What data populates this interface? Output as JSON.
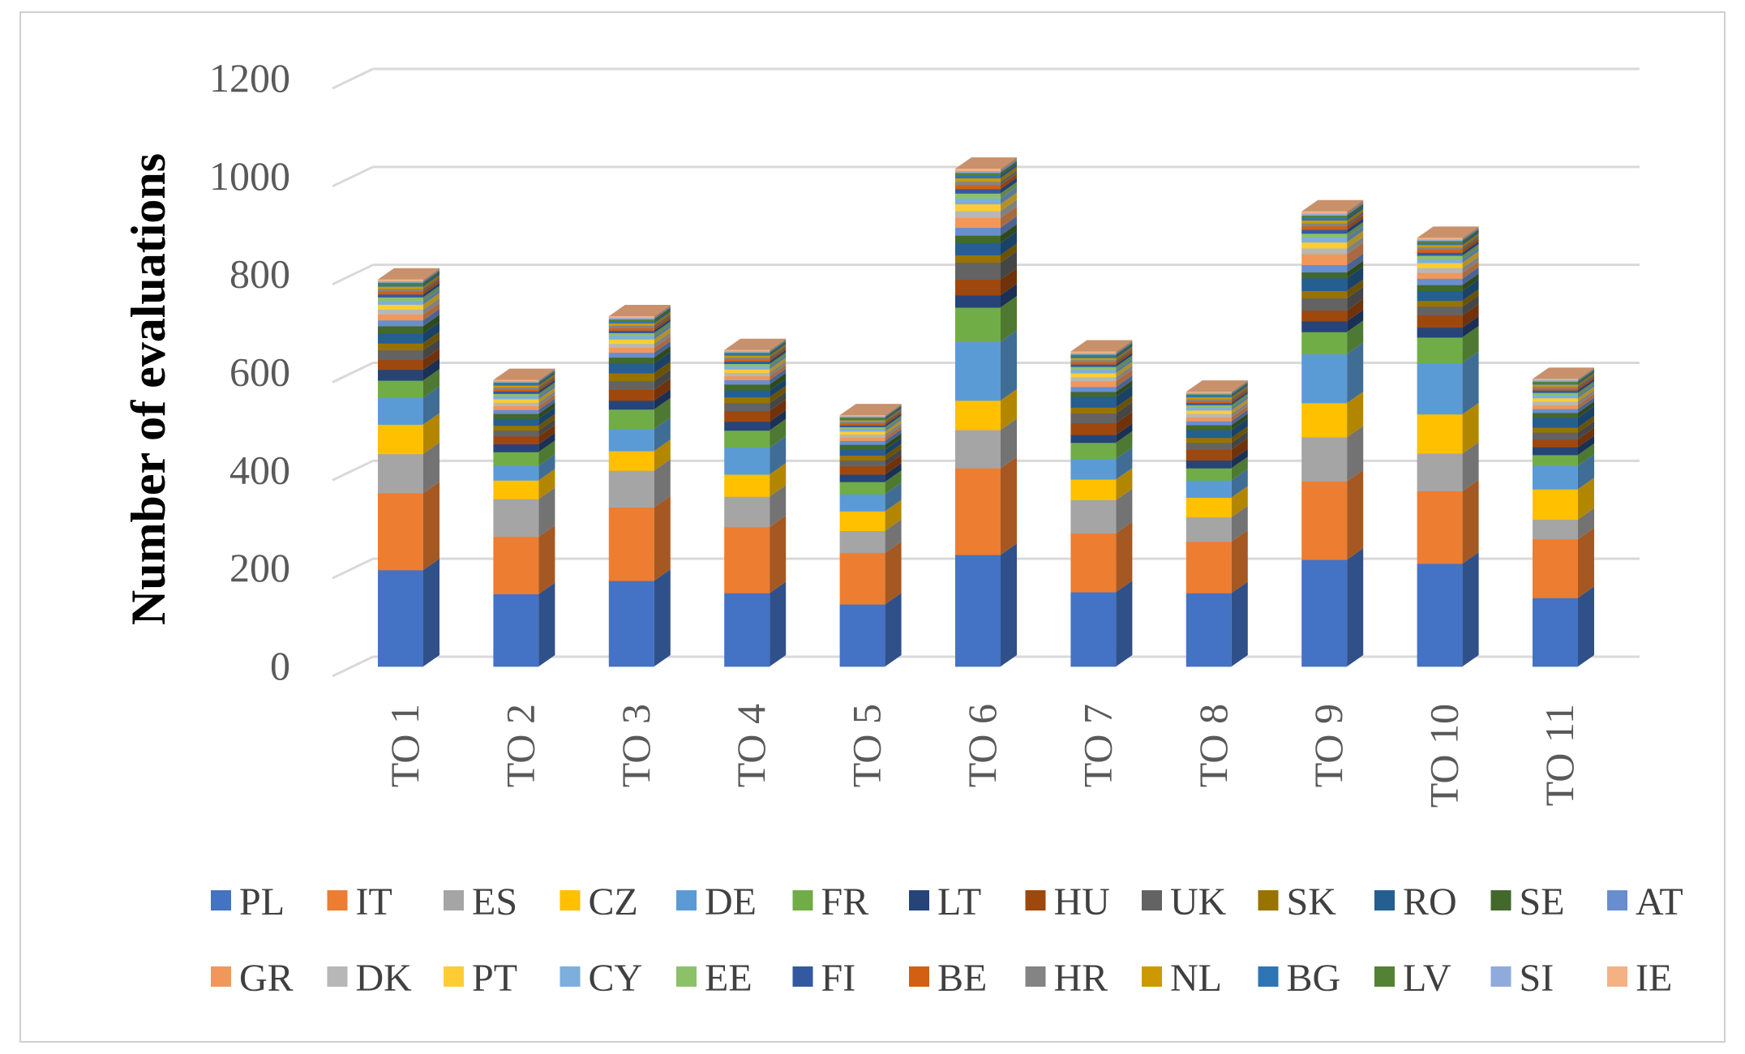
{
  "chart_data": {
    "type": "bar",
    "subtype": "stacked-3d",
    "title": "",
    "xlabel": "",
    "ylabel": "Number of evaluations",
    "ylim": [
      0,
      1200
    ],
    "yticks": [
      0,
      200,
      400,
      600,
      800,
      1000,
      1200
    ],
    "grid": true,
    "legend_position": "bottom",
    "categories": [
      "TO 1",
      "TO 2",
      "TO 3",
      "TO 4",
      "TO 5",
      "TO 6",
      "TO 7",
      "TO 8",
      "TO 9",
      "TO 10",
      "TO 11"
    ],
    "series": [
      {
        "name": "PL",
        "color": "#4472C4",
        "values": [
          197,
          148,
          175,
          150,
          127,
          228,
          152,
          150,
          218,
          210,
          140
        ]
      },
      {
        "name": "IT",
        "color": "#ED7D31",
        "values": [
          157,
          117,
          150,
          135,
          105,
          177,
          120,
          105,
          160,
          148,
          120
        ]
      },
      {
        "name": "ES",
        "color": "#A5A5A5",
        "values": [
          80,
          77,
          75,
          62,
          45,
          78,
          68,
          50,
          90,
          77,
          40
        ]
      },
      {
        "name": "CZ",
        "color": "#FFC000",
        "values": [
          60,
          38,
          40,
          45,
          40,
          60,
          42,
          40,
          70,
          80,
          62
        ]
      },
      {
        "name": "DE",
        "color": "#5B9BD5",
        "values": [
          55,
          30,
          45,
          55,
          35,
          120,
          42,
          35,
          100,
          105,
          48
        ]
      },
      {
        "name": "FR",
        "color": "#70AD47",
        "values": [
          35,
          28,
          40,
          35,
          25,
          70,
          33,
          25,
          45,
          52,
          22
        ]
      },
      {
        "name": "LT",
        "color": "#264478",
        "values": [
          22,
          16,
          18,
          18,
          15,
          25,
          16,
          16,
          22,
          20,
          16
        ]
      },
      {
        "name": "HU",
        "color": "#9E480E",
        "values": [
          20,
          16,
          22,
          22,
          17,
          32,
          24,
          22,
          22,
          25,
          16
        ]
      },
      {
        "name": "UK",
        "color": "#636363",
        "values": [
          20,
          12,
          18,
          16,
          12,
          35,
          20,
          14,
          25,
          18,
          14
        ]
      },
      {
        "name": "SK",
        "color": "#997300",
        "values": [
          14,
          10,
          16,
          12,
          10,
          15,
          12,
          10,
          15,
          12,
          10
        ]
      },
      {
        "name": "RO",
        "color": "#255E91",
        "values": [
          20,
          14,
          20,
          14,
          12,
          25,
          22,
          16,
          26,
          20,
          20
        ]
      },
      {
        "name": "SE",
        "color": "#43682B",
        "values": [
          15,
          10,
          12,
          12,
          10,
          15,
          10,
          10,
          12,
          12,
          10
        ]
      },
      {
        "name": "AT",
        "color": "#698ED0",
        "values": [
          12,
          8,
          10,
          9,
          8,
          16,
          10,
          8,
          15,
          13,
          8
        ]
      },
      {
        "name": "GR",
        "color": "#F1975A",
        "values": [
          12,
          8,
          10,
          8,
          7,
          20,
          12,
          8,
          22,
          12,
          8
        ]
      },
      {
        "name": "DK",
        "color": "#B7B7B7",
        "values": [
          10,
          7,
          8,
          7,
          6,
          14,
          8,
          7,
          12,
          10,
          7
        ]
      },
      {
        "name": "PT",
        "color": "#FFCD33",
        "values": [
          10,
          7,
          9,
          7,
          6,
          14,
          8,
          7,
          12,
          10,
          7
        ]
      },
      {
        "name": "CY",
        "color": "#7CAFDD",
        "values": [
          8,
          6,
          7,
          6,
          5,
          12,
          7,
          6,
          10,
          8,
          6
        ]
      },
      {
        "name": "EE",
        "color": "#8CC168",
        "values": [
          7,
          5,
          6,
          5,
          4,
          10,
          6,
          5,
          8,
          7,
          5
        ]
      },
      {
        "name": "FI",
        "color": "#335AA1",
        "values": [
          6,
          5,
          5,
          5,
          4,
          9,
          5,
          4,
          8,
          6,
          5
        ]
      },
      {
        "name": "BE",
        "color": "#D26012",
        "values": [
          6,
          4,
          5,
          4,
          4,
          8,
          5,
          4,
          7,
          6,
          4
        ]
      },
      {
        "name": "HR",
        "color": "#848484",
        "values": [
          5,
          4,
          5,
          4,
          3,
          7,
          4,
          4,
          6,
          5,
          4
        ]
      },
      {
        "name": "NL",
        "color": "#CC9A00",
        "values": [
          5,
          4,
          5,
          4,
          3,
          7,
          4,
          4,
          6,
          5,
          4
        ]
      },
      {
        "name": "BG",
        "color": "#2E75B6",
        "values": [
          4,
          3,
          4,
          3,
          3,
          6,
          4,
          3,
          5,
          4,
          3
        ]
      },
      {
        "name": "LV",
        "color": "#548235",
        "values": [
          4,
          3,
          4,
          3,
          3,
          5,
          3,
          3,
          5,
          4,
          3
        ]
      },
      {
        "name": "SI",
        "color": "#8FAADC",
        "values": [
          3,
          3,
          3,
          3,
          2,
          4,
          3,
          3,
          4,
          3,
          3
        ]
      },
      {
        "name": "IE",
        "color": "#F4B183",
        "values": [
          3,
          2,
          3,
          2,
          2,
          4,
          3,
          2,
          4,
          3,
          2
        ]
      }
    ]
  }
}
